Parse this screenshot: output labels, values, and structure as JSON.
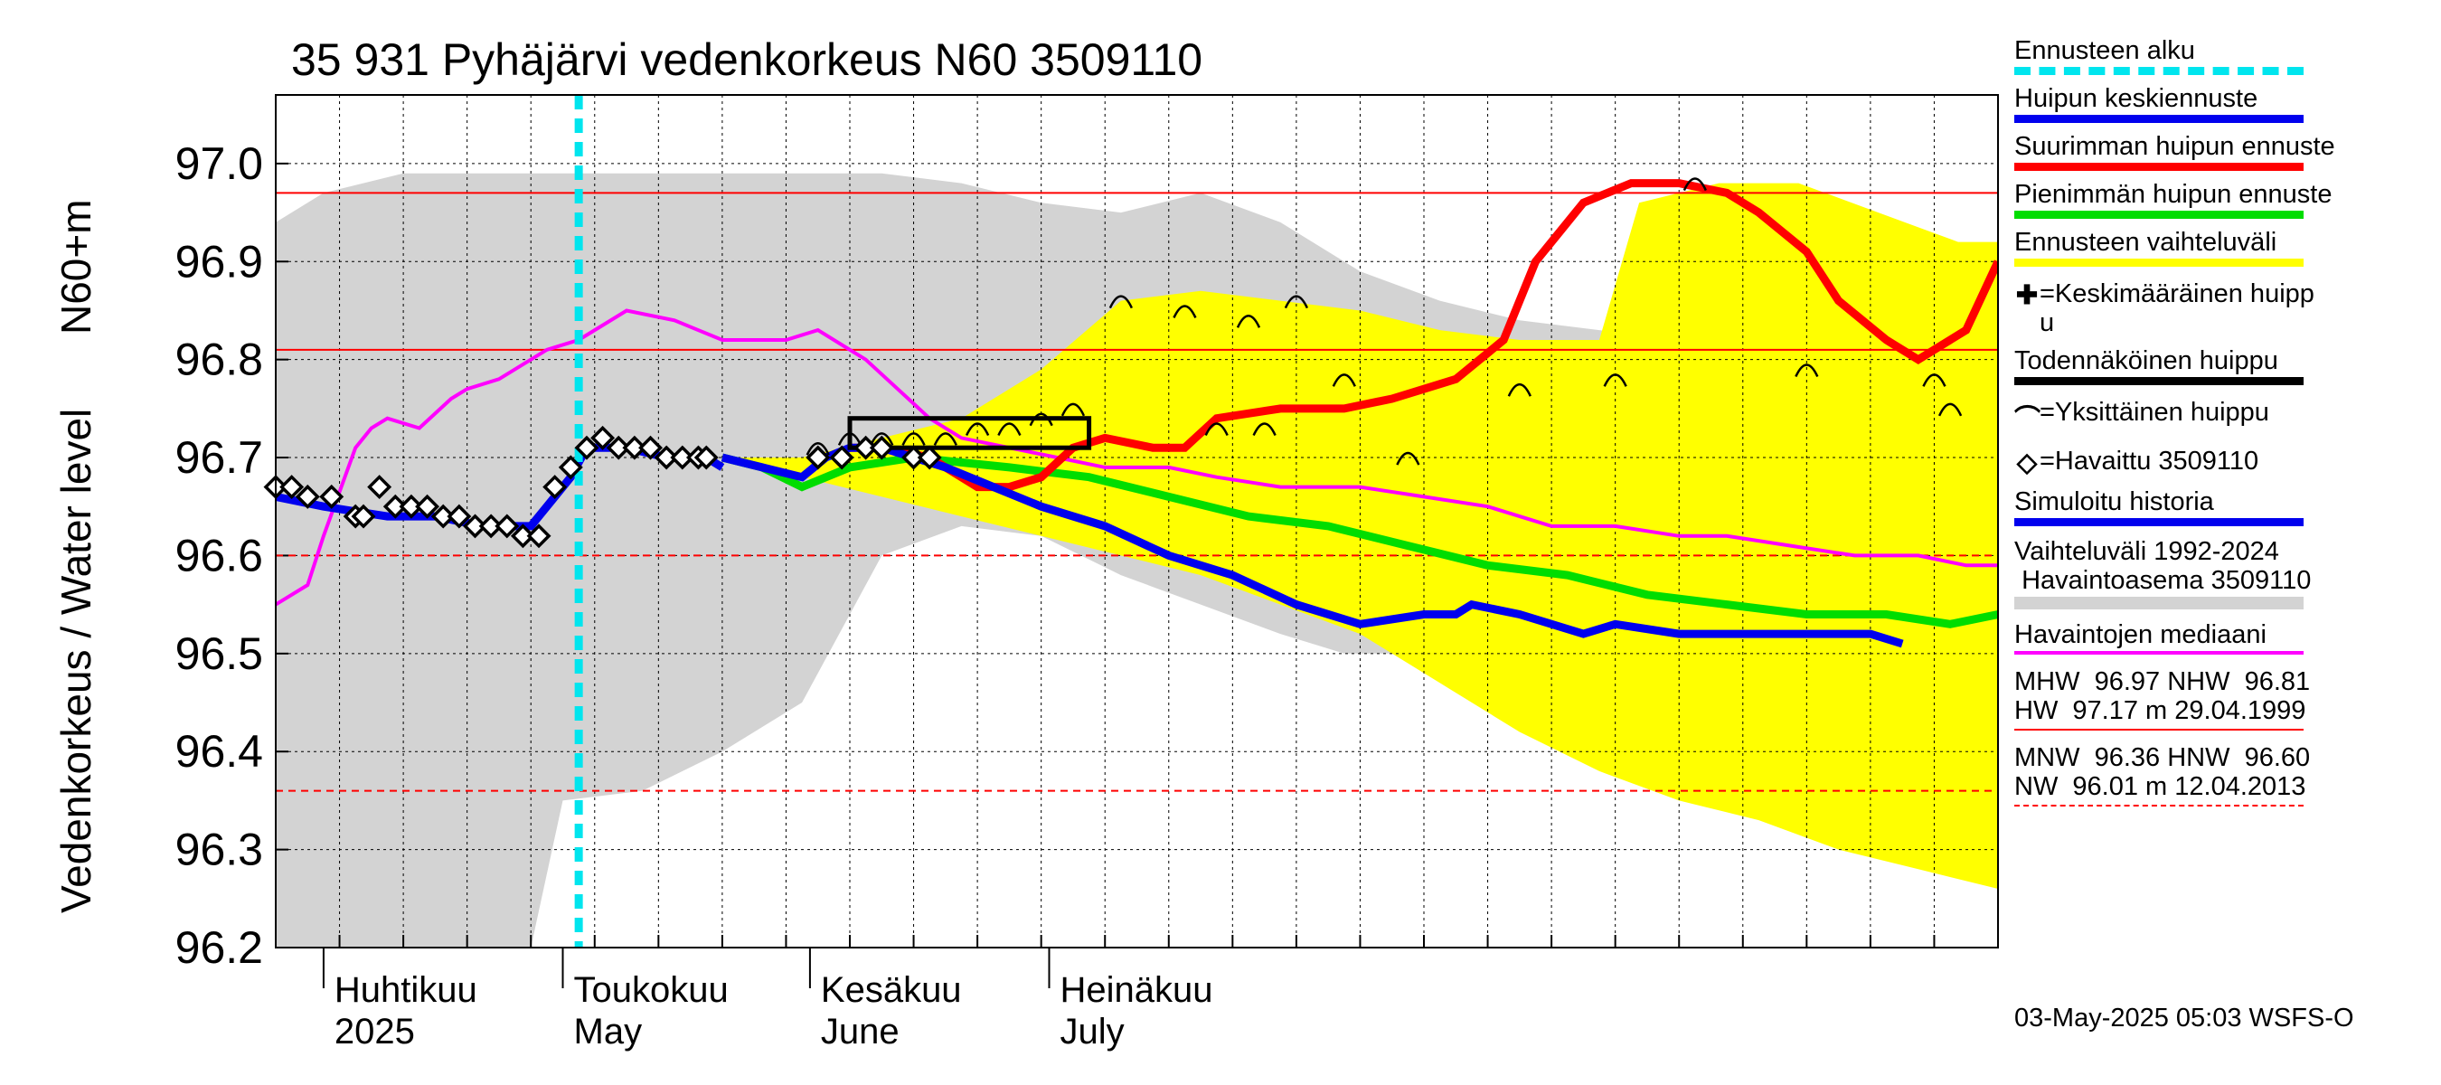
{
  "chart_data": {
    "type": "line",
    "title": "35 931 Pyhäjärvi vedenkorkeus N60 3509110",
    "ylabel_top": "N60+m",
    "ylabel": "Vedenkorkeus / Water level",
    "ylim": [
      96.2,
      97.0
    ],
    "yticks": [
      "96.2",
      "96.3",
      "96.4",
      "96.5",
      "96.6",
      "96.7",
      "96.8",
      "96.9",
      "97.0"
    ],
    "xlim_days": [
      -6,
      185
    ],
    "month_labels": [
      {
        "fi": "Huhtikuu",
        "en": "2025",
        "day": 0
      },
      {
        "fi": "Toukokuu",
        "en": "May",
        "day": 30
      },
      {
        "fi": "Kesäkuu",
        "en": "June",
        "day": 61
      },
      {
        "fi": "Heinäkuu",
        "en": "July",
        "day": 91
      }
    ],
    "forecast_start_day": 32,
    "ref_lines": {
      "MHW": 96.97,
      "NHW": 96.81,
      "MNW": 96.36,
      "HNW": 96.6
    },
    "observed": [
      [
        -6,
        96.67
      ],
      [
        -4,
        96.67
      ],
      [
        -2,
        96.66
      ],
      [
        1,
        96.66
      ],
      [
        4,
        96.64
      ],
      [
        5,
        96.64
      ],
      [
        7,
        96.67
      ],
      [
        9,
        96.65
      ],
      [
        11,
        96.65
      ],
      [
        13,
        96.65
      ],
      [
        15,
        96.64
      ],
      [
        17,
        96.64
      ],
      [
        19,
        96.63
      ],
      [
        21,
        96.63
      ],
      [
        23,
        96.63
      ],
      [
        25,
        96.62
      ],
      [
        27,
        96.62
      ],
      [
        29,
        96.67
      ],
      [
        31,
        96.69
      ],
      [
        33,
        96.71
      ],
      [
        35,
        96.72
      ],
      [
        37,
        96.71
      ],
      [
        39,
        96.71
      ],
      [
        41,
        96.71
      ],
      [
        43,
        96.7
      ],
      [
        45,
        96.7
      ],
      [
        47,
        96.7
      ],
      [
        48,
        96.7
      ],
      [
        62,
        96.7
      ],
      [
        65,
        96.7
      ],
      [
        68,
        96.71
      ],
      [
        70,
        96.71
      ],
      [
        74,
        96.7
      ],
      [
        76,
        96.7
      ]
    ],
    "simulated_history": [
      [
        -6,
        96.66
      ],
      [
        0,
        96.65
      ],
      [
        8,
        96.64
      ],
      [
        14,
        96.64
      ],
      [
        20,
        96.63
      ],
      [
        26,
        96.63
      ],
      [
        29,
        96.66
      ],
      [
        31,
        96.68
      ],
      [
        33,
        96.71
      ],
      [
        38,
        96.71
      ],
      [
        43,
        96.7
      ],
      [
        48,
        96.7
      ],
      [
        50,
        96.69
      ]
    ],
    "series": [
      {
        "name": "Huipun keskiennuste",
        "color": "#0000ee",
        "values": [
          [
            50,
            96.7
          ],
          [
            55,
            96.69
          ],
          [
            60,
            96.68
          ],
          [
            63,
            96.7
          ],
          [
            66,
            96.71
          ],
          [
            70,
            96.71
          ],
          [
            74,
            96.7
          ],
          [
            78,
            96.69
          ],
          [
            84,
            96.67
          ],
          [
            90,
            96.65
          ],
          [
            98,
            96.63
          ],
          [
            106,
            96.6
          ],
          [
            114,
            96.58
          ],
          [
            122,
            96.55
          ],
          [
            130,
            96.53
          ],
          [
            138,
            96.54
          ],
          [
            142,
            96.54
          ],
          [
            144,
            96.55
          ],
          [
            150,
            96.54
          ],
          [
            158,
            96.52
          ],
          [
            162,
            96.53
          ],
          [
            170,
            96.52
          ],
          [
            178,
            96.52
          ],
          [
            186,
            96.52
          ],
          [
            194,
            96.52
          ],
          [
            198,
            96.51
          ]
        ]
      },
      {
        "name": "Suurimman huipun ennuste",
        "color": "#ff0000",
        "values": [
          [
            66,
            96.71
          ],
          [
            70,
            96.71
          ],
          [
            76,
            96.7
          ],
          [
            82,
            96.67
          ],
          [
            86,
            96.67
          ],
          [
            90,
            96.68
          ],
          [
            94,
            96.71
          ],
          [
            98,
            96.72
          ],
          [
            104,
            96.71
          ],
          [
            108,
            96.71
          ],
          [
            112,
            96.74
          ],
          [
            120,
            96.75
          ],
          [
            128,
            96.75
          ],
          [
            134,
            96.76
          ],
          [
            138,
            96.77
          ],
          [
            142,
            96.78
          ],
          [
            148,
            96.82
          ],
          [
            152,
            96.9
          ],
          [
            158,
            96.96
          ],
          [
            164,
            96.98
          ],
          [
            170,
            96.98
          ],
          [
            176,
            96.97
          ],
          [
            180,
            96.95
          ],
          [
            186,
            96.91
          ],
          [
            190,
            96.86
          ],
          [
            196,
            96.82
          ],
          [
            200,
            96.8
          ],
          [
            206,
            96.83
          ],
          [
            210,
            96.9
          ]
        ]
      },
      {
        "name": "Pienimmän huipun ennuste",
        "color": "#00dd00",
        "values": [
          [
            50,
            96.7
          ],
          [
            55,
            96.69
          ],
          [
            60,
            96.67
          ],
          [
            66,
            96.69
          ],
          [
            74,
            96.7
          ],
          [
            86,
            96.69
          ],
          [
            96,
            96.68
          ],
          [
            106,
            96.66
          ],
          [
            116,
            96.64
          ],
          [
            126,
            96.63
          ],
          [
            136,
            96.61
          ],
          [
            146,
            96.59
          ],
          [
            156,
            96.58
          ],
          [
            166,
            96.56
          ],
          [
            176,
            96.55
          ],
          [
            186,
            96.54
          ],
          [
            196,
            96.54
          ],
          [
            204,
            96.53
          ],
          [
            210,
            96.54
          ]
        ]
      },
      {
        "name": "Havaintojen mediaani",
        "color": "#ff00ff",
        "values": [
          [
            -6,
            96.55
          ],
          [
            -2,
            96.57
          ],
          [
            0,
            96.62
          ],
          [
            4,
            96.71
          ],
          [
            6,
            96.73
          ],
          [
            8,
            96.74
          ],
          [
            12,
            96.73
          ],
          [
            16,
            96.76
          ],
          [
            18,
            96.77
          ],
          [
            22,
            96.78
          ],
          [
            28,
            96.81
          ],
          [
            32,
            96.82
          ],
          [
            38,
            96.85
          ],
          [
            44,
            96.84
          ],
          [
            50,
            96.82
          ],
          [
            54,
            96.82
          ],
          [
            58,
            96.82
          ],
          [
            62,
            96.83
          ],
          [
            68,
            96.8
          ],
          [
            72,
            96.77
          ],
          [
            76,
            96.74
          ],
          [
            80,
            96.72
          ],
          [
            86,
            96.71
          ],
          [
            92,
            96.7
          ],
          [
            98,
            96.69
          ],
          [
            106,
            96.69
          ],
          [
            112,
            96.68
          ],
          [
            120,
            96.67
          ],
          [
            130,
            96.67
          ],
          [
            138,
            96.66
          ],
          [
            146,
            96.65
          ],
          [
            154,
            96.63
          ],
          [
            162,
            96.63
          ],
          [
            170,
            96.62
          ],
          [
            176,
            96.62
          ],
          [
            184,
            96.61
          ],
          [
            192,
            96.6
          ],
          [
            200,
            96.6
          ],
          [
            206,
            96.59
          ],
          [
            210,
            96.59
          ]
        ]
      },
      {
        "name": "Ennusteen vaihteluväli",
        "color": "#ffff00",
        "upper": [
          [
            50,
            96.7
          ],
          [
            60,
            96.7
          ],
          [
            70,
            96.72
          ],
          [
            80,
            96.74
          ],
          [
            90,
            96.79
          ],
          [
            100,
            96.86
          ],
          [
            110,
            96.87
          ],
          [
            120,
            96.86
          ],
          [
            130,
            96.85
          ],
          [
            140,
            96.83
          ],
          [
            150,
            96.82
          ],
          [
            160,
            96.82
          ],
          [
            165,
            96.96
          ],
          [
            175,
            96.98
          ],
          [
            185,
            96.98
          ],
          [
            195,
            96.95
          ],
          [
            205,
            96.92
          ],
          [
            210,
            96.92
          ]
        ],
        "lower": [
          [
            50,
            96.7
          ],
          [
            60,
            96.68
          ],
          [
            70,
            96.66
          ],
          [
            80,
            96.64
          ],
          [
            90,
            96.62
          ],
          [
            100,
            96.6
          ],
          [
            110,
            96.58
          ],
          [
            120,
            96.55
          ],
          [
            130,
            96.52
          ],
          [
            140,
            96.47
          ],
          [
            150,
            96.42
          ],
          [
            160,
            96.38
          ],
          [
            170,
            96.35
          ],
          [
            180,
            96.33
          ],
          [
            190,
            96.3
          ],
          [
            200,
            96.28
          ],
          [
            210,
            96.26
          ]
        ]
      },
      {
        "name": "Vaihteluväli 1992-2024 Havaintoasema 3509110",
        "color": "#d3d3d3",
        "upper": [
          [
            -6,
            96.94
          ],
          [
            0,
            96.97
          ],
          [
            10,
            96.99
          ],
          [
            20,
            96.99
          ],
          [
            30,
            96.99
          ],
          [
            40,
            96.99
          ],
          [
            50,
            96.99
          ],
          [
            60,
            96.99
          ],
          [
            70,
            96.99
          ],
          [
            80,
            96.98
          ],
          [
            90,
            96.96
          ],
          [
            100,
            96.95
          ],
          [
            110,
            96.97
          ],
          [
            120,
            96.94
          ],
          [
            130,
            96.89
          ],
          [
            140,
            96.86
          ],
          [
            150,
            96.84
          ],
          [
            160,
            96.83
          ],
          [
            170,
            96.82
          ],
          [
            180,
            96.8
          ],
          [
            190,
            96.8
          ],
          [
            200,
            96.81
          ],
          [
            210,
            96.83
          ]
        ],
        "lower": [
          [
            -6,
            96.2
          ],
          [
            10,
            96.18
          ],
          [
            20,
            96.1
          ],
          [
            26,
            96.2
          ],
          [
            30,
            96.35
          ],
          [
            40,
            96.36
          ],
          [
            50,
            96.4
          ],
          [
            60,
            96.45
          ],
          [
            70,
            96.6
          ],
          [
            80,
            96.63
          ],
          [
            90,
            96.62
          ],
          [
            100,
            96.58
          ],
          [
            110,
            96.55
          ],
          [
            120,
            96.52
          ],
          [
            128,
            96.5
          ],
          [
            134,
            96.5
          ],
          [
            138,
            96.52
          ],
          [
            146,
            96.5
          ],
          [
            150,
            96.48
          ]
        ]
      },
      {
        "name": "Todennäköinen huippu",
        "color": "#000000",
        "box": {
          "x0": 66,
          "x1": 96,
          "y0": 96.71,
          "y1": 96.74
        }
      }
    ],
    "individual_peaks": [
      [
        62,
        96.71
      ],
      [
        66,
        96.72
      ],
      [
        70,
        96.72
      ],
      [
        74,
        96.72
      ],
      [
        78,
        96.72
      ],
      [
        82,
        96.73
      ],
      [
        86,
        96.73
      ],
      [
        90,
        96.74
      ],
      [
        94,
        96.75
      ],
      [
        100,
        96.86
      ],
      [
        108,
        96.85
      ],
      [
        116,
        96.84
      ],
      [
        122,
        96.86
      ],
      [
        128,
        96.78
      ],
      [
        136,
        96.7
      ],
      [
        150,
        96.77
      ],
      [
        162,
        96.78
      ],
      [
        172,
        96.98
      ],
      [
        186,
        96.79
      ],
      [
        202,
        96.78
      ],
      [
        204,
        96.75
      ],
      [
        112,
        96.73
      ],
      [
        118,
        96.73
      ]
    ],
    "stats": {
      "line1": "MHW  96.97 NHW  96.81",
      "line2": "HW  97.17 m 29.04.1999",
      "line3": "MNW  96.36 HNW  96.60",
      "line4": "NW  96.01 m 12.04.2013"
    }
  },
  "legend": {
    "forecast_start": "Ennusteen alku",
    "mean_forecast": "Huipun keskiennuste",
    "max_forecast": "Suurimman huipun ennuste",
    "min_forecast": "Pienimmän huipun ennuste",
    "forecast_range": "Ennusteen vaihteluväli",
    "avg_peak": "=Keskimääräinen huipp\nu",
    "likely_peak": "Todennäköinen huippu",
    "single_peak": "=Yksittäinen huippu",
    "observed": "=Havaittu 3509110",
    "simulated": "Simuloitu historia",
    "range_history_1": "Vaihteluväli 1992-2024",
    "range_history_2": " Havaintoasema 3509110",
    "median": "Havaintojen mediaani"
  },
  "timestamp": "03-May-2025 05:03 WSFS-O",
  "colors": {
    "forecast_start": "#00e5ee",
    "mean": "#0000ee",
    "max": "#ff0000",
    "min": "#00dd00",
    "range": "#ffff00",
    "median": "#ff00ff",
    "history": "#d3d3d3"
  }
}
